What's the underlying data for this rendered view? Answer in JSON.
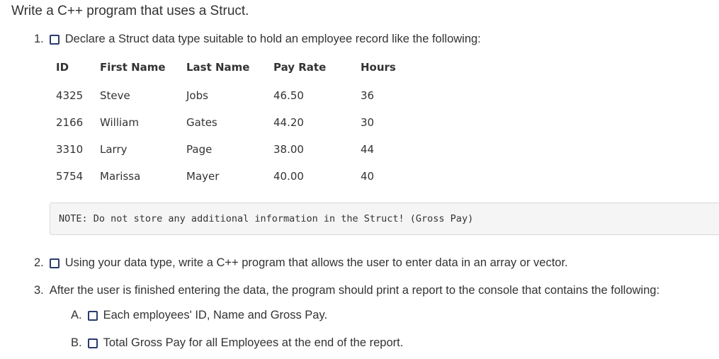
{
  "title": "Write a C++ program that uses a Struct.",
  "items": [
    {
      "num": "1.",
      "text": "Declare a Struct data type suitable to hold an employee record like the following:"
    },
    {
      "num": "2.",
      "text": "Using your data type, write a C++ program that allows the user to enter data in an array or vector."
    },
    {
      "num": "3.",
      "text": "After the user is finished entering the data, the program should print a report to the console that contains the following:"
    }
  ],
  "subitems": [
    {
      "num": "A.",
      "text": "Each employees' ID, Name and Gross Pay."
    },
    {
      "num": "B.",
      "text": "Total Gross Pay for all Employees at the end of the report."
    }
  ],
  "table": {
    "headers": [
      "ID",
      "First Name",
      "Last Name",
      "Pay Rate",
      "Hours"
    ],
    "rows": [
      [
        "4325",
        "Steve",
        "Jobs",
        "46.50",
        "36"
      ],
      [
        "2166",
        "William",
        "Gates",
        "44.20",
        "30"
      ],
      [
        "3310",
        "Larry",
        "Page",
        "38.00",
        "44"
      ],
      [
        "5754",
        "Marissa",
        "Mayer",
        "40.00",
        "40"
      ]
    ]
  },
  "note": "NOTE: Do not store any additional information in the Struct! (Gross Pay)"
}
